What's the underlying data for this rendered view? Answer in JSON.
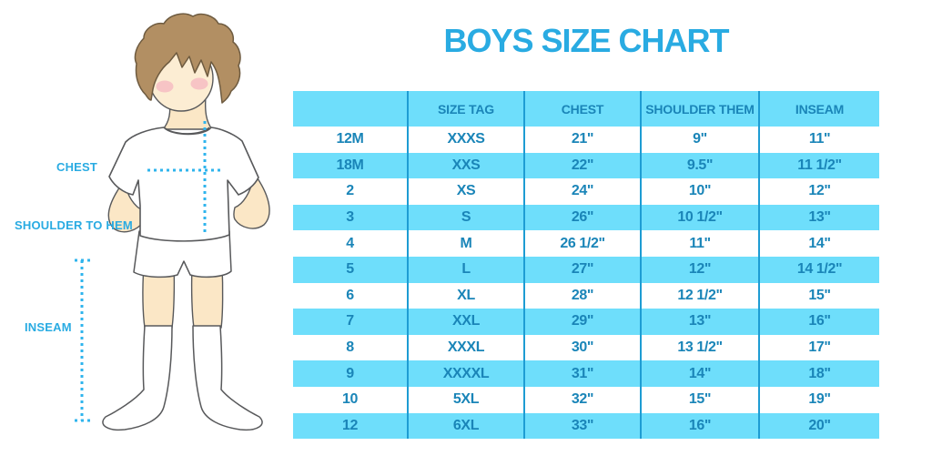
{
  "title": "BOYS SIZE CHART",
  "figure": {
    "labels": {
      "chest": "CHEST",
      "shoulder_to_hem": "SHOULDER TO HEM",
      "inseam": "INSEAM"
    }
  },
  "chart_data": {
    "type": "table",
    "title": "BOYS SIZE CHART",
    "columns": [
      "",
      "SIZE TAG",
      "CHEST",
      "SHOULDER THEM",
      "INSEAM"
    ],
    "rows": [
      [
        "12M",
        "XXXS",
        "21\"",
        "9\"",
        "11\""
      ],
      [
        "18M",
        "XXS",
        "22\"",
        "9.5\"",
        "11 1/2\""
      ],
      [
        "2",
        "XS",
        "24\"",
        "10\"",
        "12\""
      ],
      [
        "3",
        "S",
        "26\"",
        "10 1/2\"",
        "13\""
      ],
      [
        "4",
        "M",
        "26 1/2\"",
        "11\"",
        "14\""
      ],
      [
        "5",
        "L",
        "27\"",
        "12\"",
        "14 1/2\""
      ],
      [
        "6",
        "XL",
        "28\"",
        "12 1/2\"",
        "15\""
      ],
      [
        "7",
        "XXL",
        "29\"",
        "13\"",
        "16\""
      ],
      [
        "8",
        "XXXL",
        "30\"",
        "13 1/2\"",
        "17\""
      ],
      [
        "9",
        "XXXXL",
        "31\"",
        "14\"",
        "18\""
      ],
      [
        "10",
        "5XL",
        "32\"",
        "15\"",
        "19\""
      ],
      [
        "12",
        "6XL",
        "33\"",
        "16\"",
        "20\""
      ]
    ],
    "layout": {
      "header_background": "#6EDEFB",
      "stripe_colors": [
        "#FFFFFF",
        "#6EDEFB"
      ],
      "grid": "vertical-only"
    }
  },
  "colors": {
    "title_blue": "#29ABE2",
    "table_text": "#1A85B8",
    "row_stripe": "#6EDEFB",
    "column_divider": "#1E9CD3",
    "measure_dots": "#2FB4ED",
    "hair": "#B28F63",
    "skin": "#FBE7C6",
    "cheek": "#F4A9BC",
    "outline": "#58595B"
  }
}
